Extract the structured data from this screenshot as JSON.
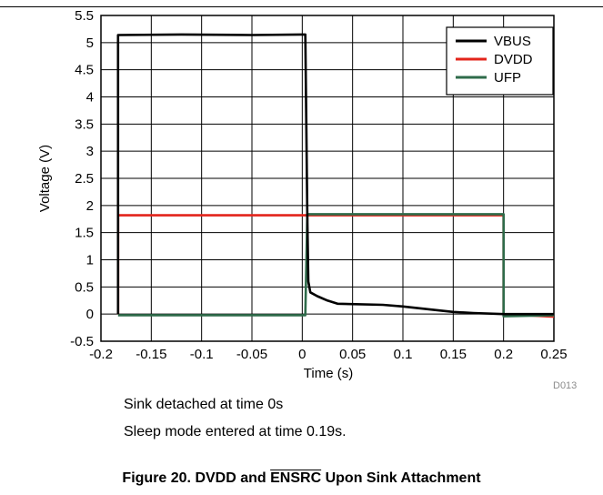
{
  "chart_data": {
    "type": "line",
    "xlabel": "Time (s)",
    "ylabel": "Voltage (V)",
    "xlim": [
      -0.2,
      0.25
    ],
    "ylim": [
      -0.5,
      5.5
    ],
    "x_ticks": [
      "-0.2",
      "-0.15",
      "-0.1",
      "-0.05",
      "0",
      "0.05",
      "0.1",
      "0.15",
      "0.2",
      "0.25"
    ],
    "y_ticks": [
      "-0.5",
      "0",
      "0.5",
      "1",
      "1.5",
      "2",
      "2.5",
      "3",
      "3.5",
      "4",
      "4.5",
      "5",
      "5.5"
    ],
    "grid": true,
    "legend_position": "top-right",
    "series": [
      {
        "name": "VBUS",
        "color": "#000000",
        "points": [
          [
            -0.183,
            0.0
          ],
          [
            -0.183,
            5.14
          ],
          [
            -0.12,
            5.15
          ],
          [
            -0.05,
            5.14
          ],
          [
            0.0,
            5.15
          ],
          [
            0.003,
            5.15
          ],
          [
            0.005,
            1.8
          ],
          [
            0.006,
            0.6
          ],
          [
            0.008,
            0.4
          ],
          [
            0.015,
            0.33
          ],
          [
            0.025,
            0.25
          ],
          [
            0.035,
            0.19
          ],
          [
            0.08,
            0.17
          ],
          [
            0.1,
            0.14
          ],
          [
            0.13,
            0.08
          ],
          [
            0.15,
            0.04
          ],
          [
            0.17,
            0.02
          ],
          [
            0.2,
            0.0
          ],
          [
            0.25,
            0.0
          ]
        ]
      },
      {
        "name": "DVDD",
        "color": "#e3241b",
        "points": [
          [
            -0.183,
            0.0
          ],
          [
            -0.183,
            1.82
          ],
          [
            0.2,
            1.82
          ],
          [
            0.2,
            0.0
          ],
          [
            0.25,
            -0.05
          ]
        ]
      },
      {
        "name": "UFP",
        "color": "#2e6b4a",
        "points": [
          [
            -0.183,
            -0.02
          ],
          [
            0.003,
            -0.02
          ],
          [
            0.005,
            1.84
          ],
          [
            0.2,
            1.84
          ],
          [
            0.2,
            -0.04
          ],
          [
            0.25,
            -0.02
          ]
        ]
      }
    ]
  },
  "figure_id": "D013",
  "notes": [
    "Sink detached at time 0s",
    "Sleep mode entered at time 0.19s."
  ],
  "caption": {
    "prefix": "Figure 20. DVDD and ",
    "overlined": "ENSRC",
    "suffix": " Upon Sink Attachment"
  }
}
